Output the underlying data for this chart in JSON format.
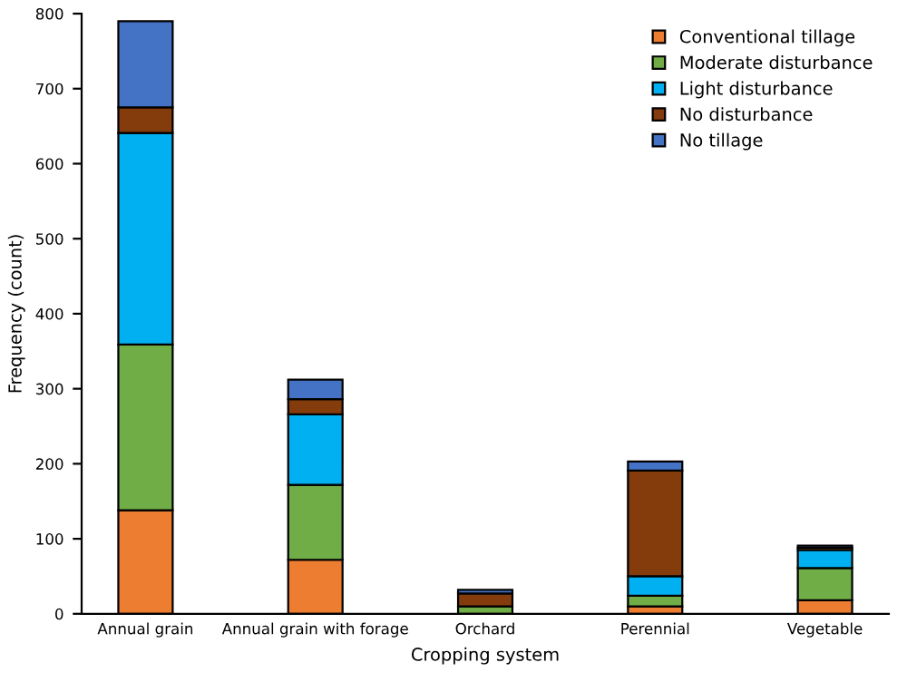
{
  "chart_data": {
    "type": "bar",
    "stacked": true,
    "xlabel": "Cropping system",
    "ylabel": "Frequency (count)",
    "categories": [
      "Annual grain",
      "Annual grain with forage",
      "Orchard",
      "Perennial",
      "Vegetable"
    ],
    "series": [
      {
        "name": "Conventional tillage",
        "color": "#ed7d31",
        "values": [
          138,
          72,
          null,
          10,
          18
        ]
      },
      {
        "name": "Moderate disturbance",
        "color": "#70ad47",
        "values": [
          221,
          100,
          10,
          14,
          43
        ]
      },
      {
        "name": "Light disturbance",
        "color": "#00b0f0",
        "values": [
          282,
          94,
          null,
          26,
          24
        ]
      },
      {
        "name": "No disturbance",
        "color": "#843c0c",
        "values": [
          34,
          20,
          17,
          141,
          3
        ]
      },
      {
        "name": "No tillage",
        "color": "#4472c4",
        "values": [
          115,
          26,
          5,
          12,
          3
        ]
      }
    ],
    "ylim": [
      0,
      800
    ],
    "yticks": [
      0,
      100,
      200,
      300,
      400,
      500,
      600,
      700,
      800
    ],
    "grid": false,
    "legend": "top right"
  }
}
